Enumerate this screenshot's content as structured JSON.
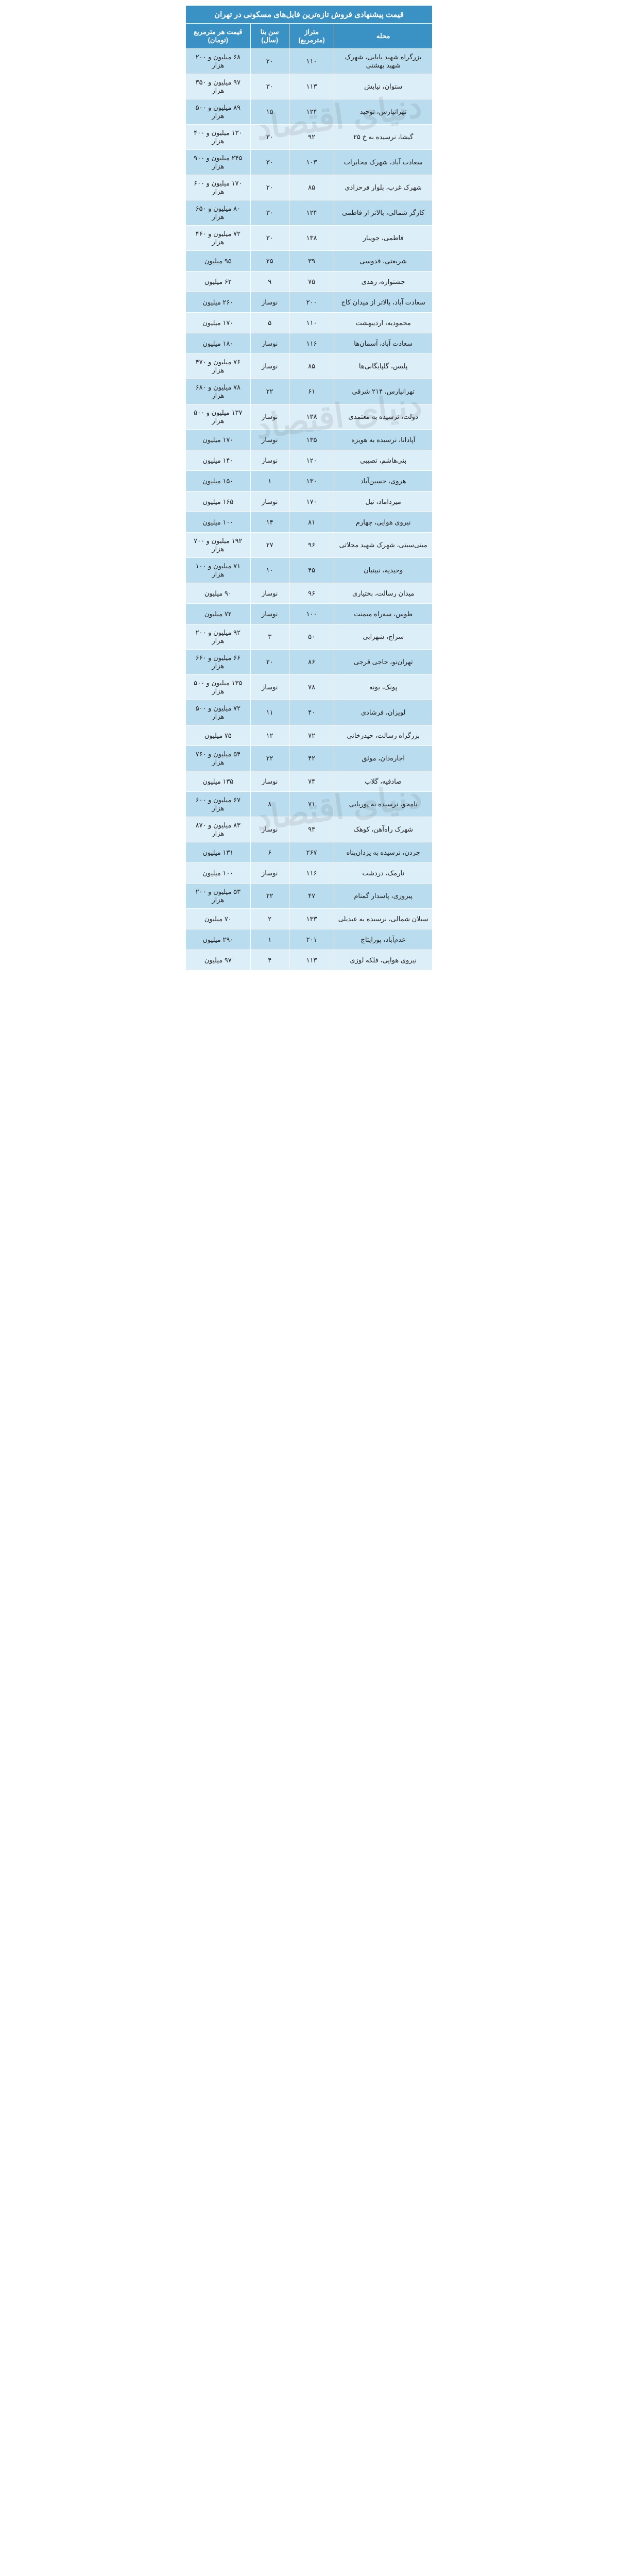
{
  "title": "قیمت پیشنهادی فروش تازه‌ترین فایل‌های مسکونی در تهران",
  "headers": {
    "price": "قیمت هر مترمربع (تومان)",
    "age": "سن بنا (سال)",
    "area": "متراژ (مترمربع)",
    "district": "محله"
  },
  "colors": {
    "header_bg": "#3a91c4",
    "header_text": "#ffffff",
    "row_odd": "#b9dcef",
    "row_even": "#dceef8",
    "border": "#ffffff",
    "text": "#222222"
  },
  "font_sizes": {
    "title": 15,
    "header": 13,
    "cell": 13
  },
  "watermark_text": "دنیای اقتصاد",
  "rows": [
    {
      "district": "بزرگراه شهید بابایی، شهرک شهید بهشتی",
      "area": "۱۱۰",
      "age": "۲۰",
      "price": "۶۸ میلیون و ۲۰۰ هزار"
    },
    {
      "district": "ستوان، نیایش",
      "area": "۱۱۳",
      "age": "۳۰",
      "price": "۹۷ میلیون و ۳۵۰ هزار"
    },
    {
      "district": "تهرانپارس، توحید",
      "area": "۱۲۴",
      "age": "۱۵",
      "price": "۸۹ میلیون و ۵۰۰ هزار"
    },
    {
      "district": "گیشا، نرسیده به خ ۲۵",
      "area": "۹۲",
      "age": "۳۰",
      "price": "۱۳۰ میلیون و ۴۰۰ هزار"
    },
    {
      "district": "سعادت آباد، شهرک مخابرات",
      "area": "۱۰۳",
      "age": "۳۰",
      "price": "۲۴۵ میلیون و ۹۰۰ هزار"
    },
    {
      "district": "شهرک غرب، بلوار فرحزادی",
      "area": "۸۵",
      "age": "۲۰",
      "price": "۱۷۰ میلیون و ۶۰۰ هزار"
    },
    {
      "district": "کارگر شمالی، بالاتر از فاطمی",
      "area": "۱۲۴",
      "age": "۳۰",
      "price": "۸۰ میلیون و ۶۵۰ هزار"
    },
    {
      "district": "فاطمی، جویبار",
      "area": "۱۳۸",
      "age": "۳۰",
      "price": "۷۲ میلیون و ۴۶۰ هزار"
    },
    {
      "district": "شریعتی، قدوسی",
      "area": "۳۹",
      "age": "۲۵",
      "price": "۹۵ میلیون"
    },
    {
      "district": "جشنواره، زهدی",
      "area": "۷۵",
      "age": "۹",
      "price": "۶۲ میلیون"
    },
    {
      "district": "سعادت آباد، بالاتر از میدان کاج",
      "area": "۲۰۰",
      "age": "نوساز",
      "price": "۲۶۰ میلیون"
    },
    {
      "district": "محمودیه، اردیبهشت",
      "area": "۱۱۰",
      "age": "۵",
      "price": "۱۷۰ میلیون"
    },
    {
      "district": "سعادت آباد، آسمان‌ها",
      "area": "۱۱۶",
      "age": "نوساز",
      "price": "۱۸۰ میلیون"
    },
    {
      "district": "پلیس، گلپایگانی‌ها",
      "area": "۸۵",
      "age": "نوساز",
      "price": "۷۶ میلیون و ۴۷۰ هزار"
    },
    {
      "district": "تهرانپارس، ۲۱۴ شرقی",
      "area": "۶۱",
      "age": "۲۲",
      "price": "۷۸ میلیون و ۶۸۰ هزار"
    },
    {
      "district": "دولت، نرسیده به معتمدی",
      "area": "۱۲۸",
      "age": "نوساز",
      "price": "۱۳۷ میلیون و ۵۰۰ هزار"
    },
    {
      "district": "آپادانا، نرسیده به هویزه",
      "area": "۱۳۵",
      "age": "نوساز",
      "price": "۱۷۰ میلیون"
    },
    {
      "district": "بنی‌هاشم، تصیبی",
      "area": "۱۲۰",
      "age": "نوساز",
      "price": "۱۴۰ میلیون"
    },
    {
      "district": "هروی، حسین‌آباد",
      "area": "۱۳۰",
      "age": "۱",
      "price": "۱۵۰ میلیون"
    },
    {
      "district": "میرداماد، نیل",
      "area": "۱۷۰",
      "age": "نوساز",
      "price": "۱۶۵ میلیون"
    },
    {
      "district": "نیروی هوایی، چهارم",
      "area": "۸۱",
      "age": "۱۴",
      "price": "۱۰۰ میلیون"
    },
    {
      "district": "مینی‌سیتی، شهرک شهید محلاتی",
      "area": "۹۶",
      "age": "۲۷",
      "price": "۱۹۲ میلیون و ۷۰۰ هزار"
    },
    {
      "district": "وحیدیه، نبیتیان",
      "area": "۴۵",
      "age": "۱۰",
      "price": "۷۱ میلیون و ۱۰۰ هزار"
    },
    {
      "district": "میدان رسالت، بختیاری",
      "area": "۹۶",
      "age": "نوساز",
      "price": "۹۰ میلیون"
    },
    {
      "district": "طوس، سه‌راه میمنت",
      "area": "۱۰۰",
      "age": "نوساز",
      "price": "۷۲ میلیون"
    },
    {
      "district": "سراج، شهرابی",
      "area": "۵۰",
      "age": "۳",
      "price": "۹۲ میلیون و ۲۰۰ هزار"
    },
    {
      "district": "تهران‌نو، حاجی قرجی",
      "area": "۸۶",
      "age": "۲۰",
      "price": "۶۶ میلیون و ۶۶۰ هزار"
    },
    {
      "district": "پونک، یونه",
      "area": "۷۸",
      "age": "نوساز",
      "price": "۱۳۵ میلیون و ۵۰۰ هزار"
    },
    {
      "district": "لویزان، فرشادی",
      "area": "۴۰",
      "age": "۱۱",
      "price": "۷۲ میلیون و ۵۰۰ هزار"
    },
    {
      "district": "بزرگراه رسالت، حیدرخانی",
      "area": "۷۲",
      "age": "۱۲",
      "price": "۷۵ میلیون"
    },
    {
      "district": "اجاره‌دان، موثق",
      "area": "۴۲",
      "age": "۲۲",
      "price": "۵۴ میلیون و ۷۶۰ هزار"
    },
    {
      "district": "صادقیه، گلاب",
      "area": "۷۴",
      "age": "نوساز",
      "price": "۱۳۵ میلیون"
    },
    {
      "district": "نامجو، نرسیده به پوریایی",
      "area": "۷۱",
      "age": "۸",
      "price": "۶۷ میلیون و ۶۰۰ هزار"
    },
    {
      "district": "شهرک راه‌آهن، کوهک",
      "area": "۹۳",
      "age": "نوساز",
      "price": "۸۳ میلیون و ۸۷۰ هزار"
    },
    {
      "district": "جردن، نرسیده به یزدان‌پناه",
      "area": "۲۶۷",
      "age": "۶",
      "price": "۱۳۱ میلیون"
    },
    {
      "district": "نارمک، دردشت",
      "area": "۱۱۶",
      "age": "نوساز",
      "price": "۱۰۰ میلیون"
    },
    {
      "district": "پیروزی، پاسدار گمنام",
      "area": "۴۷",
      "age": "۲۲",
      "price": "۵۳ میلیون و ۲۰۰ هزار"
    },
    {
      "district": "سبلان شمالی، نرسیده به عبدیلی",
      "area": "۱۳۳",
      "age": "۲",
      "price": "۷۰ میلیون"
    },
    {
      "district": "عدم‌آباد، پوراپتاج",
      "area": "۲۰۱",
      "age": "۱",
      "price": "۲۹۰ میلیون"
    },
    {
      "district": "نیروی هوایی، فلکه لوزی",
      "area": "۱۱۳",
      "age": "۴",
      "price": "۹۷ میلیون"
    }
  ]
}
